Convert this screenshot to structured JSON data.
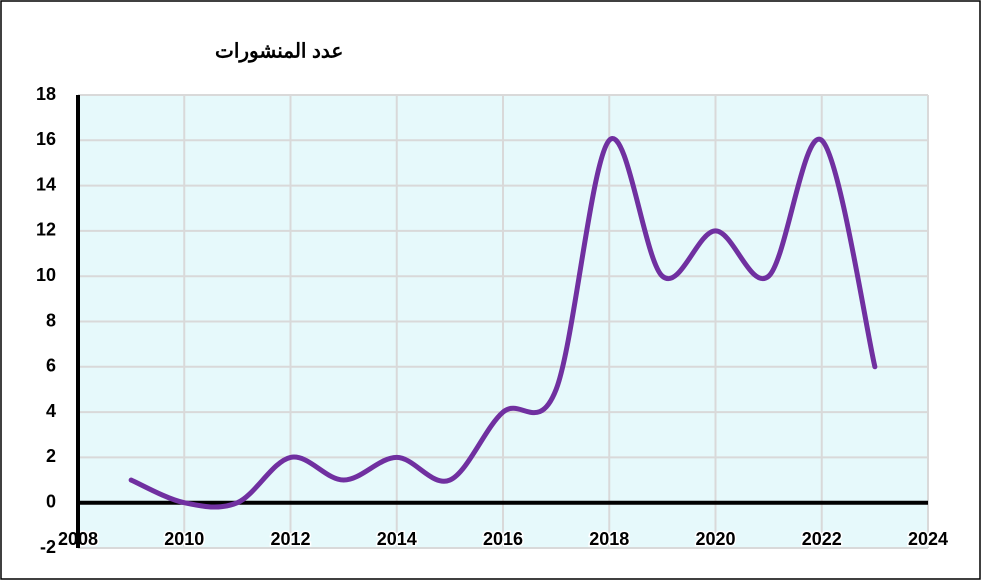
{
  "chart_data": {
    "type": "line",
    "title": "عدد المنشورات",
    "x": [
      2009,
      2010,
      2011,
      2012,
      2013,
      2014,
      2015,
      2016,
      2017,
      2018,
      2019,
      2020,
      2021,
      2022,
      2023
    ],
    "series": [
      {
        "name": "عدد المنشورات",
        "color": "#7030a0",
        "values": [
          1,
          0,
          0,
          2,
          1,
          2,
          1,
          4,
          5,
          16,
          10,
          12,
          10,
          16,
          6
        ]
      }
    ],
    "xlim": [
      2008,
      2024
    ],
    "xticks": [
      2008,
      2010,
      2012,
      2014,
      2016,
      2018,
      2020,
      2022,
      2024
    ],
    "ylim": [
      -2,
      18
    ],
    "yticks": [
      -2,
      0,
      2,
      4,
      6,
      8,
      10,
      12,
      14,
      16,
      18
    ],
    "grid": true,
    "smooth": true
  }
}
